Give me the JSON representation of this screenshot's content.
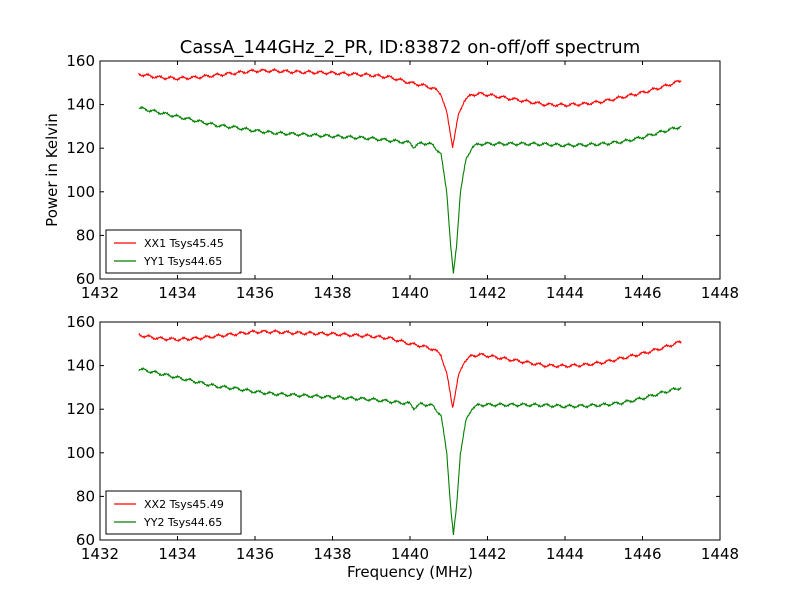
{
  "figure": {
    "title": "CassA_144GHz_2_PR, ID:83872 on-off/off spectrum"
  },
  "chart_data": [
    {
      "type": "line",
      "xlim": [
        1432,
        1448
      ],
      "ylim": [
        60,
        160
      ],
      "x_ticks": [
        "1432",
        "1434",
        "1436",
        "1438",
        "1440",
        "1442",
        "1444",
        "1446",
        "1448"
      ],
      "y_ticks": [
        "60",
        "80",
        "100",
        "120",
        "140",
        "160"
      ],
      "ylabel": "Power in Kelvin",
      "xlabel": "",
      "legend_placement": "lower-left",
      "grid": false,
      "series": [
        {
          "name": "XX1 Tsys45.45",
          "color": "#ff0000",
          "x": [
            1433.0,
            1433.5,
            1434.0,
            1434.5,
            1435.0,
            1435.5,
            1436.0,
            1436.5,
            1437.0,
            1437.5,
            1438.0,
            1438.5,
            1439.0,
            1439.5,
            1440.0,
            1440.3,
            1440.6,
            1440.8,
            1440.95,
            1441.1,
            1441.25,
            1441.4,
            1441.6,
            1441.8,
            1442.0,
            1442.5,
            1443.0,
            1443.5,
            1444.0,
            1444.5,
            1445.0,
            1445.5,
            1446.0,
            1446.5,
            1447.0
          ],
          "values": [
            154,
            152.5,
            152,
            152.5,
            153.5,
            154.5,
            155.5,
            155.5,
            155,
            154.8,
            154.5,
            154,
            153.5,
            152.5,
            150,
            149,
            147.5,
            145,
            136,
            121,
            135,
            142,
            144.5,
            145,
            144.5,
            143,
            141.5,
            140,
            139.8,
            140.3,
            141.5,
            143.5,
            145.5,
            148,
            151
          ]
        },
        {
          "name": "YY1 Tsys44.65",
          "color": "#008000",
          "x": [
            1433.0,
            1433.5,
            1434.0,
            1434.5,
            1435.0,
            1435.5,
            1436.0,
            1436.5,
            1437.0,
            1437.5,
            1438.0,
            1438.5,
            1439.0,
            1439.5,
            1440.0,
            1440.1,
            1440.3,
            1440.6,
            1440.8,
            1440.95,
            1441.05,
            1441.12,
            1441.2,
            1441.3,
            1441.45,
            1441.6,
            1441.8,
            1442.0,
            1442.5,
            1443.0,
            1443.5,
            1444.0,
            1444.5,
            1445.0,
            1445.5,
            1446.0,
            1446.5,
            1447.0
          ],
          "values": [
            138.5,
            136.5,
            134.5,
            132.5,
            130.5,
            129.5,
            128,
            127,
            126.5,
            126,
            125.5,
            125,
            124.5,
            123.5,
            122.5,
            120.5,
            122.5,
            121.5,
            117,
            100,
            75,
            62,
            75,
            100,
            115,
            120.5,
            122,
            122,
            122,
            122,
            121.8,
            121.3,
            121.5,
            122,
            123,
            125,
            127.5,
            130
          ]
        }
      ]
    },
    {
      "type": "line",
      "xlim": [
        1432,
        1448
      ],
      "ylim": [
        60,
        160
      ],
      "x_ticks": [
        "1432",
        "1434",
        "1436",
        "1438",
        "1440",
        "1442",
        "1444",
        "1446",
        "1448"
      ],
      "y_ticks": [
        "60",
        "80",
        "100",
        "120",
        "140",
        "160"
      ],
      "ylabel": "",
      "xlabel": "Frequency (MHz)",
      "legend_placement": "lower-left",
      "grid": false,
      "series": [
        {
          "name": "XX2 Tsys45.49",
          "color": "#ff0000",
          "x": [
            1433.0,
            1433.5,
            1434.0,
            1434.5,
            1435.0,
            1435.5,
            1436.0,
            1436.5,
            1437.0,
            1437.5,
            1438.0,
            1438.5,
            1439.0,
            1439.5,
            1440.0,
            1440.3,
            1440.6,
            1440.8,
            1440.95,
            1441.1,
            1441.25,
            1441.4,
            1441.6,
            1441.8,
            1442.0,
            1442.5,
            1443.0,
            1443.5,
            1444.0,
            1444.5,
            1445.0,
            1445.5,
            1446.0,
            1446.5,
            1447.0
          ],
          "values": [
            154,
            152.5,
            152,
            152.5,
            153.5,
            154.5,
            155.5,
            155.5,
            155,
            154.8,
            154.5,
            154,
            153.5,
            152.5,
            150,
            149,
            147.5,
            145,
            136,
            121,
            135,
            142,
            144.5,
            145,
            144.5,
            143,
            141.5,
            140,
            139.8,
            140.3,
            141.5,
            143.5,
            145.5,
            148,
            151
          ]
        },
        {
          "name": "YY2 Tsys44.65",
          "color": "#008000",
          "x": [
            1433.0,
            1433.5,
            1434.0,
            1434.5,
            1435.0,
            1435.5,
            1436.0,
            1436.5,
            1437.0,
            1437.5,
            1438.0,
            1438.5,
            1439.0,
            1439.5,
            1440.0,
            1440.1,
            1440.3,
            1440.6,
            1440.8,
            1440.95,
            1441.05,
            1441.12,
            1441.2,
            1441.3,
            1441.45,
            1441.6,
            1441.8,
            1442.0,
            1442.5,
            1443.0,
            1443.5,
            1444.0,
            1444.5,
            1445.0,
            1445.5,
            1446.0,
            1446.5,
            1447.0
          ],
          "values": [
            138.5,
            136.5,
            134.5,
            132.5,
            130.5,
            129.5,
            128,
            127,
            126.5,
            126,
            125.5,
            125,
            124.5,
            123.5,
            122.5,
            120.5,
            122.5,
            121.5,
            117,
            100,
            75,
            62,
            75,
            100,
            115,
            120.5,
            122,
            122,
            122,
            122,
            121.8,
            121.3,
            121.5,
            122,
            123,
            125,
            127.5,
            130
          ]
        }
      ]
    }
  ]
}
